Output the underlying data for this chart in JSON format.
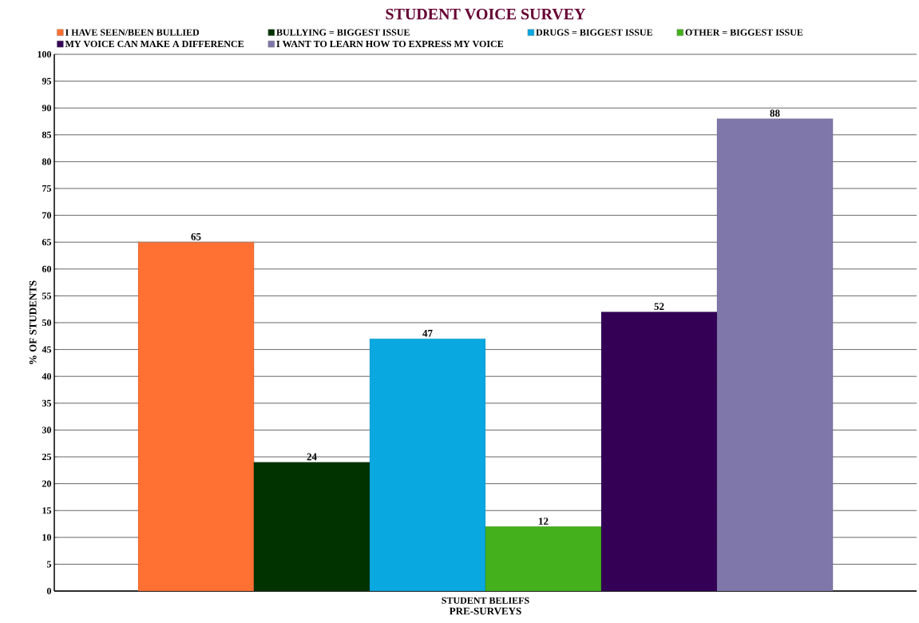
{
  "chart_data": {
    "type": "bar",
    "title": "STUDENT VOICE SURVEY",
    "xlabel": "PRE-SURVEYS",
    "ylabel": "% OF STUDENTS",
    "categories": [
      "STUDENT BELIEFS"
    ],
    "series": [
      {
        "name": "I HAVE SEEN/BEEN BULLIED",
        "color": "#ff7033",
        "values": [
          65
        ]
      },
      {
        "name": "BULLYING = BIGGEST ISSUE",
        "color": "#003300",
        "values": [
          24
        ]
      },
      {
        "name": "DRUGS = BIGGEST ISSUE",
        "color": "#0aa8e0",
        "values": [
          47
        ]
      },
      {
        "name": "OTHER = BIGGEST ISSUE",
        "color": "#44b01c",
        "values": [
          12
        ]
      },
      {
        "name": "MY VOICE CAN MAKE A DIFFERENCE",
        "color": "#330055",
        "values": [
          52
        ]
      },
      {
        "name": "I WANT TO LEARN HOW TO EXPRESS MY VOICE",
        "color": "#7f77aa",
        "values": [
          88
        ]
      }
    ],
    "ylim": [
      0,
      100
    ],
    "yticks": [
      0,
      5,
      10,
      15,
      20,
      25,
      30,
      35,
      40,
      45,
      50,
      55,
      60,
      65,
      70,
      75,
      80,
      85,
      90,
      95,
      100
    ],
    "grid": "y",
    "legend": "top",
    "data_labels": true
  }
}
